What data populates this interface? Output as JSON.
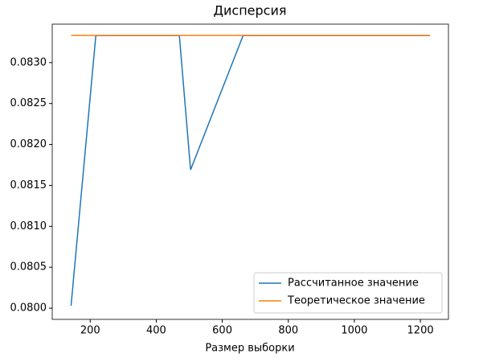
{
  "chart_data": {
    "type": "line",
    "title": "Дисперсия",
    "xlabel": "Размер выборки",
    "xlim": [
      85,
      1285
    ],
    "ylim": [
      0.079863,
      0.08347
    ],
    "xticks": [
      200,
      400,
      600,
      800,
      1000,
      1200
    ],
    "yticks": [
      {
        "value": 0.08,
        "label": "0.0800"
      },
      {
        "value": 0.0805,
        "label": "0.0805"
      },
      {
        "value": 0.081,
        "label": "0.0810"
      },
      {
        "value": 0.0815,
        "label": "0.0815"
      },
      {
        "value": 0.082,
        "label": "0.0820"
      },
      {
        "value": 0.0825,
        "label": "0.0825"
      },
      {
        "value": 0.083,
        "label": "0.0830"
      }
    ],
    "legend": "lower right",
    "series": [
      {
        "name": "Рассчитанное значение",
        "color": "#1f77b4",
        "x": [
          142,
          217,
          470,
          504,
          663,
          1229
        ],
        "values": [
          0.08003,
          0.08333,
          0.08333,
          0.08169,
          0.08333,
          0.08333
        ]
      },
      {
        "name": "Теоретическое значение",
        "color": "#ff7f0e",
        "x": [
          142,
          1229
        ],
        "values": [
          0.083333,
          0.083333
        ]
      }
    ]
  }
}
